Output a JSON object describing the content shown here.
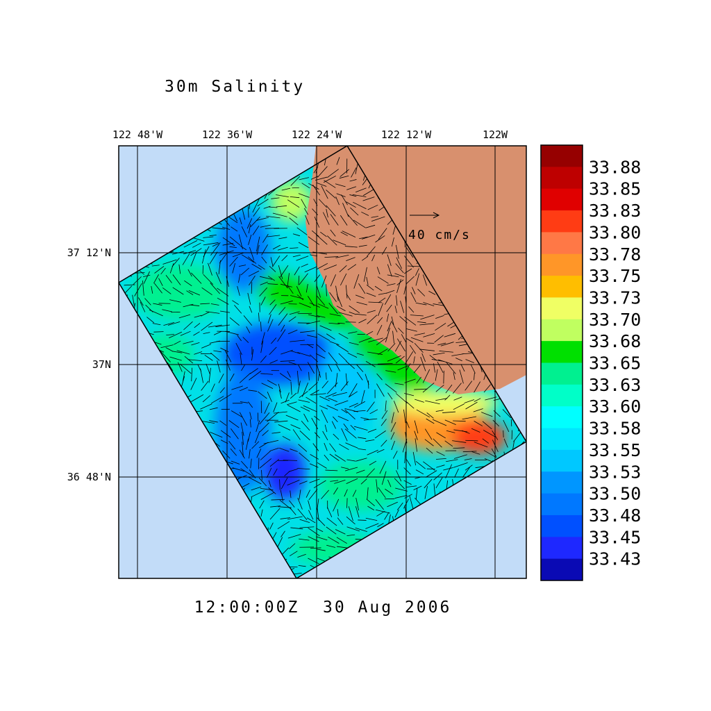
{
  "title": "30m Salinity",
  "map": {
    "lon_labels": [
      "122 48'W",
      "122 36'W",
      "122 24'W",
      "122 12'W",
      "122W"
    ],
    "lat_labels": [
      "37 12'N",
      "37N",
      "36 48'N"
    ],
    "reference_vector": "40 cm/s"
  },
  "timestamp": "12:00:00Z  30 Aug 2006",
  "colorbar": {
    "colors": [
      "#960000",
      "#be0000",
      "#e00000",
      "#ff3c14",
      "#ff7846",
      "#ff9628",
      "#ffbe00",
      "#f0ff64",
      "#c0ff60",
      "#00e000",
      "#00f090",
      "#00ffc8",
      "#00ffff",
      "#00e6ff",
      "#00c8ff",
      "#0096ff",
      "#0078ff",
      "#0050ff",
      "#1e28ff",
      "#0a0ab4"
    ],
    "labels": [
      "33.88",
      "33.85",
      "33.83",
      "33.80",
      "33.78",
      "33.75",
      "33.73",
      "33.70",
      "33.68",
      "33.65",
      "33.63",
      "33.60",
      "33.58",
      "33.55",
      "33.53",
      "33.50",
      "33.48",
      "33.45",
      "33.43"
    ]
  }
}
